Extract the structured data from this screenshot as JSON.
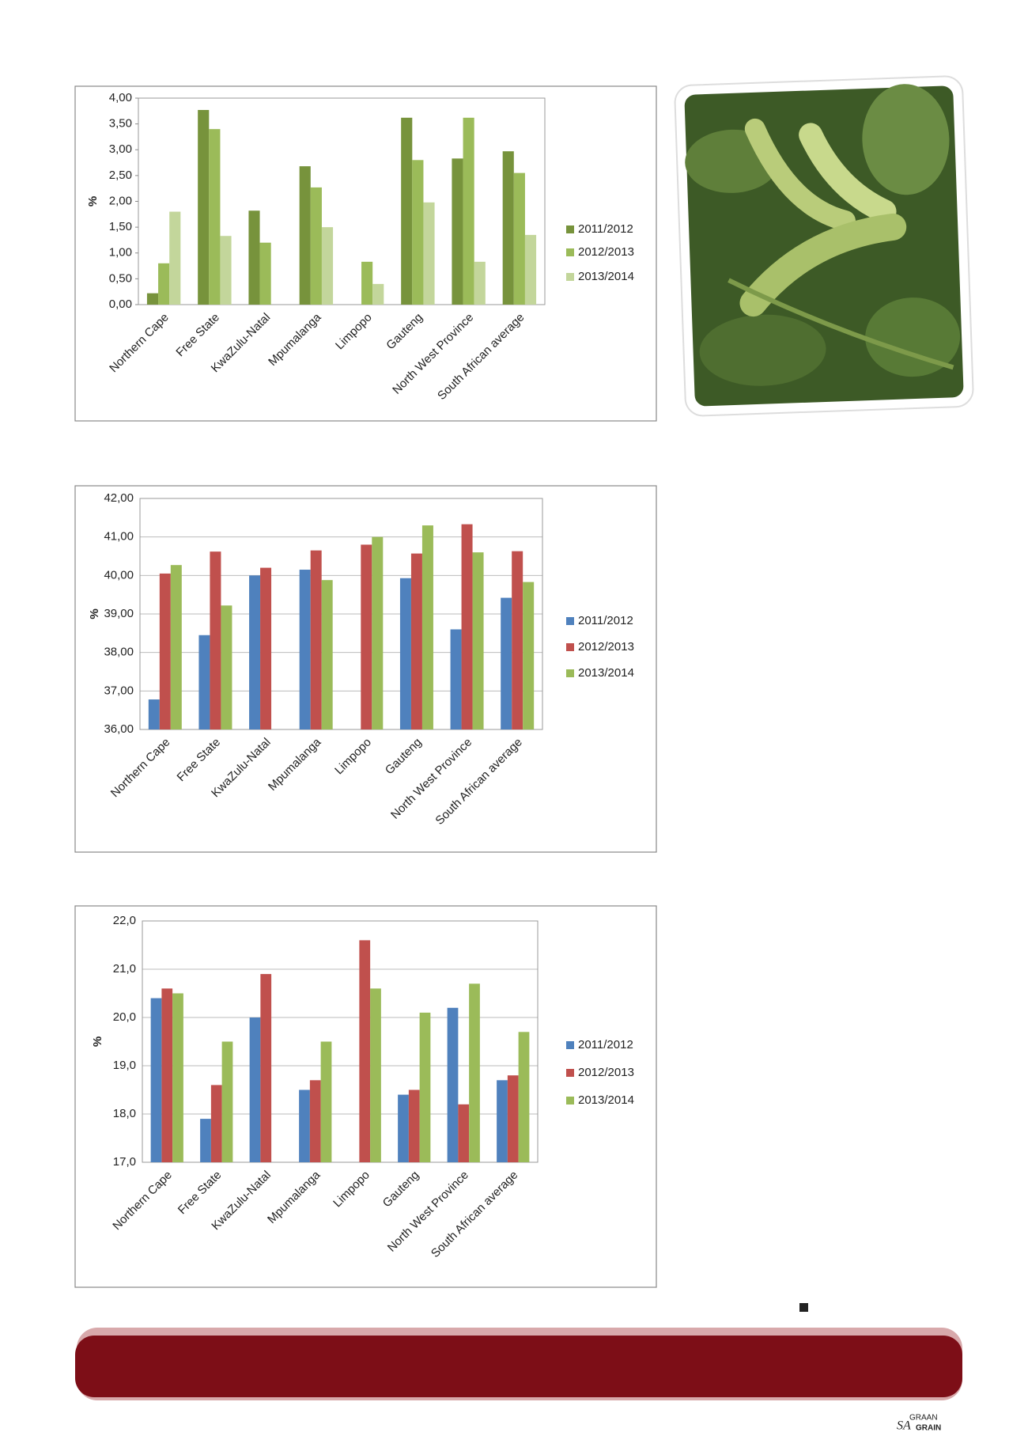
{
  "chart_data": [
    {
      "type": "bar",
      "y_label": "%",
      "categories": [
        "Northern Cape",
        "Free State",
        "KwaZulu-Natal",
        "Mpumalanga",
        "Limpopo",
        "Gauteng",
        "North West Province",
        "South African average"
      ],
      "series": [
        {
          "name": "2011/2012",
          "color": "#77933c",
          "values": [
            0.22,
            3.77,
            1.82,
            2.68,
            null,
            3.62,
            2.83,
            2.97
          ]
        },
        {
          "name": "2012/2013",
          "color": "#9bbb59",
          "values": [
            0.8,
            3.4,
            1.2,
            2.27,
            0.83,
            2.8,
            3.62,
            2.55
          ]
        },
        {
          "name": "2013/2014",
          "color": "#c3d69b",
          "values": [
            1.8,
            1.33,
            null,
            1.5,
            0.4,
            1.98,
            0.83,
            1.35
          ]
        }
      ],
      "ylim": [
        0,
        4
      ],
      "yticks": [
        {
          "value": 0,
          "label": "0,00"
        },
        {
          "value": 0.5,
          "label": "0,50"
        },
        {
          "value": 1,
          "label": "1,00"
        },
        {
          "value": 1.5,
          "label": "1,50"
        },
        {
          "value": 2,
          "label": "2,00"
        },
        {
          "value": 2.5,
          "label": "2,50"
        },
        {
          "value": 3,
          "label": "3,00"
        },
        {
          "value": 3.5,
          "label": "3,50"
        },
        {
          "value": 4,
          "label": "4,00"
        }
      ],
      "grid": false,
      "legend": "right"
    },
    {
      "type": "bar",
      "y_label": "%",
      "categories": [
        "Northern Cape",
        "Free State",
        "KwaZulu-Natal",
        "Mpumalanga",
        "Limpopo",
        "Gauteng",
        "North West Province",
        "South African average"
      ],
      "series": [
        {
          "name": "2011/2012",
          "color": "#4f81bd",
          "values": [
            36.78,
            38.45,
            40.0,
            40.15,
            null,
            39.93,
            38.6,
            39.42
          ]
        },
        {
          "name": "2012/2013",
          "color": "#c0504d",
          "values": [
            40.05,
            40.62,
            40.2,
            40.65,
            40.8,
            40.57,
            41.33,
            40.63
          ]
        },
        {
          "name": "2013/2014",
          "color": "#9bbb59",
          "values": [
            40.27,
            39.22,
            null,
            39.88,
            41.0,
            41.3,
            40.6,
            39.83
          ]
        }
      ],
      "ylim": [
        36,
        42
      ],
      "yticks": [
        {
          "value": 36,
          "label": "36,00"
        },
        {
          "value": 37,
          "label": "37,00"
        },
        {
          "value": 38,
          "label": "38,00"
        },
        {
          "value": 39,
          "label": "39,00"
        },
        {
          "value": 40,
          "label": "40,00"
        },
        {
          "value": 41,
          "label": "41,00"
        },
        {
          "value": 42,
          "label": "42,00"
        }
      ],
      "grid": true,
      "legend": "right"
    },
    {
      "type": "bar",
      "y_label": "%",
      "categories": [
        "Northern Cape",
        "Free State",
        "KwaZulu-Natal",
        "Mpumalanga",
        "Limpopo",
        "Gauteng",
        "North West Province",
        "South African average"
      ],
      "series": [
        {
          "name": "2011/2012",
          "color": "#4f81bd",
          "values": [
            20.4,
            17.9,
            20.0,
            18.5,
            null,
            18.4,
            20.2,
            18.7
          ]
        },
        {
          "name": "2012/2013",
          "color": "#c0504d",
          "values": [
            20.6,
            18.6,
            20.9,
            18.7,
            21.6,
            18.5,
            18.2,
            18.8
          ]
        },
        {
          "name": "2013/2014",
          "color": "#9bbb59",
          "values": [
            20.5,
            19.5,
            null,
            19.5,
            20.6,
            20.1,
            20.7,
            19.7
          ]
        }
      ],
      "ylim": [
        17,
        22
      ],
      "yticks": [
        {
          "value": 17,
          "label": "17,0"
        },
        {
          "value": 18,
          "label": "18,0"
        },
        {
          "value": 19,
          "label": "19,0"
        },
        {
          "value": 20,
          "label": "20,0"
        },
        {
          "value": 21,
          "label": "21,0"
        },
        {
          "value": 22,
          "label": "22,0"
        }
      ],
      "grid": true,
      "legend": "right"
    }
  ],
  "logo": {
    "top": "GRAAN",
    "mark": "SA",
    "bottom": "GRAIN"
  }
}
